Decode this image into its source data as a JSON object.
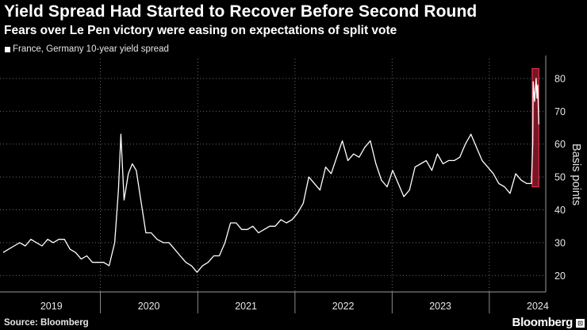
{
  "header": {
    "title": "Yield Spread Had Started to Recover Before Second Round",
    "subtitle": "Fears over Le Pen victory were easing on expectations of split vote"
  },
  "footer": {
    "source": "Source: Bloomberg",
    "brand": "Bloomberg"
  },
  "colors": {
    "background": "#000000",
    "line": "#ffffff",
    "highlight_fill": "#8b1a2b",
    "highlight_stroke": "#e0304a"
  },
  "chart_data": {
    "type": "line",
    "ylabel": "Basis points",
    "ylim": [
      15,
      86
    ],
    "yticks": [
      20,
      30,
      40,
      50,
      60,
      70,
      80
    ],
    "yaxis_side": "right",
    "grid": "dotted",
    "x_tick_labels": [
      "2019",
      "2020",
      "2021",
      "2022",
      "2023",
      "2024"
    ],
    "legend_position": "top-left",
    "highlight": {
      "x_start": "2024-06-10",
      "x_end": "2024-07-05",
      "y_range": [
        47,
        83
      ]
    },
    "series": [
      {
        "name": "France, Germany 10-year yield spread",
        "points": [
          [
            "2019-01-01",
            27
          ],
          [
            "2019-01-21",
            28
          ],
          [
            "2019-02-11",
            29
          ],
          [
            "2019-03-04",
            30
          ],
          [
            "2019-03-25",
            29
          ],
          [
            "2019-04-15",
            31
          ],
          [
            "2019-05-06",
            30
          ],
          [
            "2019-05-27",
            29
          ],
          [
            "2019-06-17",
            31
          ],
          [
            "2019-07-08",
            30
          ],
          [
            "2019-07-29",
            31
          ],
          [
            "2019-08-19",
            31
          ],
          [
            "2019-09-09",
            28
          ],
          [
            "2019-09-30",
            27
          ],
          [
            "2019-10-21",
            25
          ],
          [
            "2019-11-11",
            26
          ],
          [
            "2019-12-02",
            24
          ],
          [
            "2019-12-23",
            24
          ],
          [
            "2020-01-13",
            24
          ],
          [
            "2020-02-03",
            23
          ],
          [
            "2020-02-24",
            30
          ],
          [
            "2020-03-09",
            46
          ],
          [
            "2020-03-18",
            63
          ],
          [
            "2020-03-30",
            43
          ],
          [
            "2020-04-15",
            51
          ],
          [
            "2020-04-30",
            54
          ],
          [
            "2020-05-15",
            52
          ],
          [
            "2020-06-01",
            43
          ],
          [
            "2020-06-20",
            33
          ],
          [
            "2020-07-10",
            33
          ],
          [
            "2020-08-01",
            31
          ],
          [
            "2020-08-25",
            30
          ],
          [
            "2020-09-15",
            30
          ],
          [
            "2020-10-06",
            28
          ],
          [
            "2020-10-27",
            26
          ],
          [
            "2020-11-17",
            24
          ],
          [
            "2020-12-08",
            23
          ],
          [
            "2020-12-29",
            21
          ],
          [
            "2021-01-19",
            23
          ],
          [
            "2021-02-09",
            24
          ],
          [
            "2021-03-02",
            26
          ],
          [
            "2021-03-23",
            26
          ],
          [
            "2021-04-13",
            30
          ],
          [
            "2021-05-04",
            36
          ],
          [
            "2021-05-25",
            36
          ],
          [
            "2021-06-15",
            34
          ],
          [
            "2021-07-06",
            34
          ],
          [
            "2021-07-27",
            35
          ],
          [
            "2021-08-17",
            33
          ],
          [
            "2021-09-07",
            34
          ],
          [
            "2021-09-28",
            35
          ],
          [
            "2021-10-19",
            35
          ],
          [
            "2021-11-09",
            37
          ],
          [
            "2021-11-30",
            36
          ],
          [
            "2021-12-21",
            37
          ],
          [
            "2022-01-11",
            39
          ],
          [
            "2022-02-01",
            42
          ],
          [
            "2022-02-22",
            50
          ],
          [
            "2022-03-15",
            48
          ],
          [
            "2022-04-05",
            46
          ],
          [
            "2022-04-26",
            53
          ],
          [
            "2022-05-17",
            51
          ],
          [
            "2022-06-07",
            56
          ],
          [
            "2022-06-28",
            61
          ],
          [
            "2022-07-19",
            55
          ],
          [
            "2022-08-09",
            57
          ],
          [
            "2022-08-30",
            56
          ],
          [
            "2022-09-20",
            59
          ],
          [
            "2022-10-11",
            61
          ],
          [
            "2022-11-01",
            54
          ],
          [
            "2022-11-22",
            49
          ],
          [
            "2022-12-13",
            47
          ],
          [
            "2023-01-03",
            52
          ],
          [
            "2023-01-24",
            48
          ],
          [
            "2023-02-14",
            44
          ],
          [
            "2023-03-07",
            46
          ],
          [
            "2023-03-28",
            53
          ],
          [
            "2023-04-18",
            54
          ],
          [
            "2023-05-09",
            55
          ],
          [
            "2023-05-30",
            52
          ],
          [
            "2023-06-20",
            57
          ],
          [
            "2023-07-11",
            54
          ],
          [
            "2023-08-01",
            55
          ],
          [
            "2023-08-22",
            55
          ],
          [
            "2023-09-12",
            56
          ],
          [
            "2023-10-03",
            60
          ],
          [
            "2023-10-24",
            63
          ],
          [
            "2023-11-14",
            59
          ],
          [
            "2023-12-05",
            55
          ],
          [
            "2023-12-26",
            53
          ],
          [
            "2024-01-16",
            51
          ],
          [
            "2024-02-06",
            48
          ],
          [
            "2024-02-27",
            47
          ],
          [
            "2024-03-19",
            45
          ],
          [
            "2024-04-09",
            51
          ],
          [
            "2024-04-30",
            49
          ],
          [
            "2024-05-21",
            48
          ],
          [
            "2024-06-07",
            48
          ],
          [
            "2024-06-12",
            60
          ],
          [
            "2024-06-14",
            79
          ],
          [
            "2024-06-19",
            73
          ],
          [
            "2024-06-25",
            80
          ],
          [
            "2024-06-28",
            74
          ],
          [
            "2024-07-01",
            78
          ],
          [
            "2024-07-03",
            71
          ],
          [
            "2024-07-05",
            66
          ]
        ]
      }
    ]
  }
}
